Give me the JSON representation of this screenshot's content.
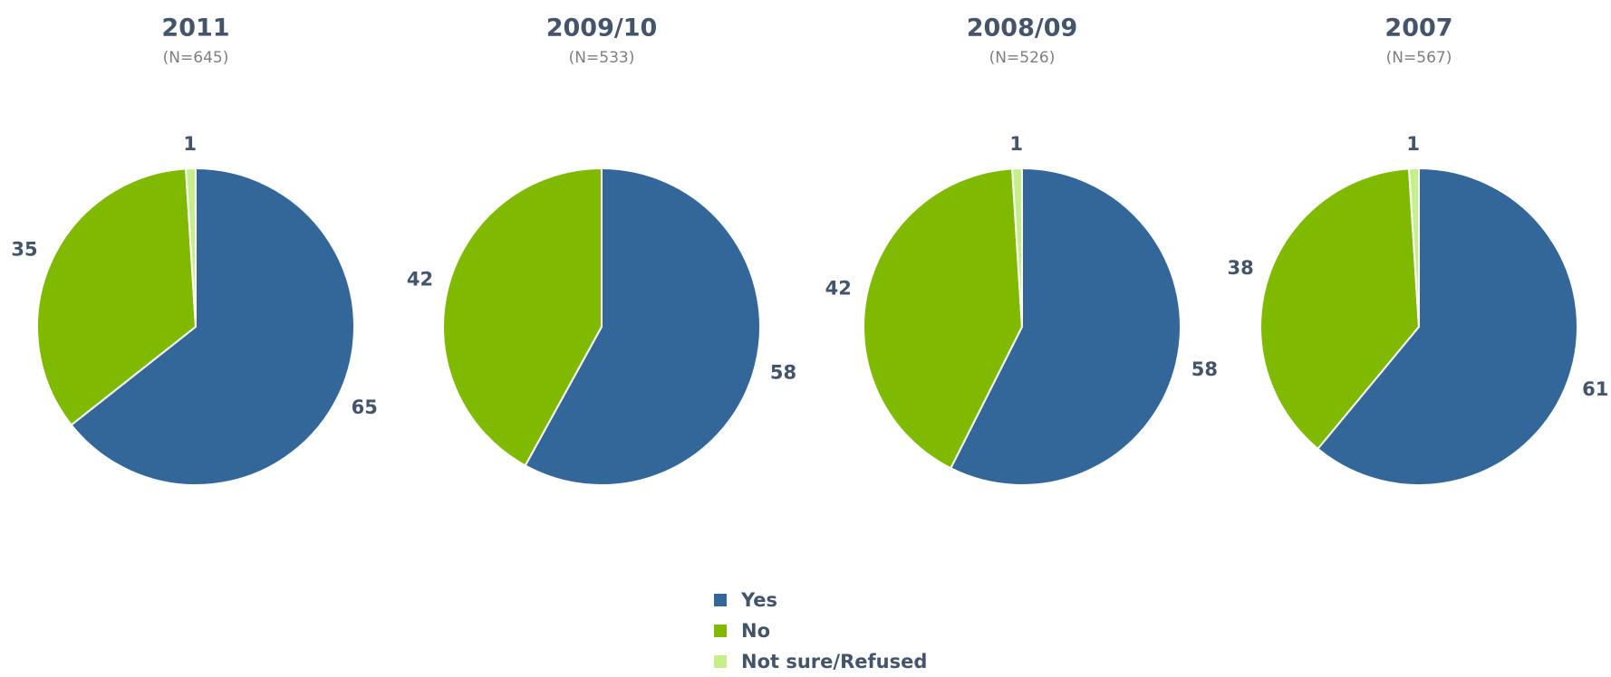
{
  "chart_data": [
    {
      "type": "pie",
      "title": "2011",
      "subtitle": "(N=645)",
      "categories": [
        "Yes",
        "No",
        "Not sure/Refused"
      ],
      "values": [
        65,
        35,
        1
      ],
      "data_labels": [
        "65",
        "35",
        "1"
      ]
    },
    {
      "type": "pie",
      "title": "2009/10",
      "subtitle": "(N=533)",
      "categories": [
        "Yes",
        "No",
        "Not sure/Refused"
      ],
      "values": [
        58,
        42,
        0
      ],
      "data_labels": [
        "58",
        "42",
        ""
      ]
    },
    {
      "type": "pie",
      "title": "2008/09",
      "subtitle": "(N=526)",
      "categories": [
        "Yes",
        "No",
        "Not sure/Refused"
      ],
      "values": [
        58,
        42,
        1
      ],
      "data_labels": [
        "58",
        "42",
        "1"
      ]
    },
    {
      "type": "pie",
      "title": "2007",
      "subtitle": "(N=567)",
      "categories": [
        "Yes",
        "No",
        "Not sure/Refused"
      ],
      "values": [
        61,
        38,
        1
      ],
      "data_labels": [
        "61",
        "38",
        "1"
      ]
    }
  ],
  "legend": {
    "placement": "bottom-center",
    "items": [
      {
        "label": "Yes",
        "color": "#336699"
      },
      {
        "label": "No",
        "color": "#7fba00"
      },
      {
        "label": "Not sure/Refused",
        "color": "#c6ef8c"
      }
    ]
  }
}
